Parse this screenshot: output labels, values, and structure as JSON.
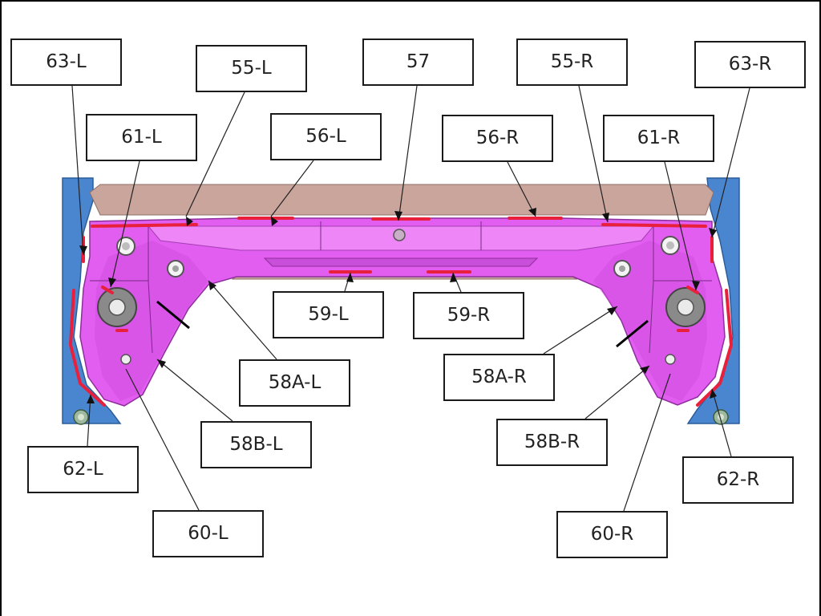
{
  "callouts": {
    "c63L": "63-L",
    "c55L": "55-L",
    "c57": "57",
    "c55R": "55-R",
    "c63R": "63-R",
    "c61L": "61-L",
    "c56L": "56-L",
    "c56R": "56-R",
    "c61R": "61-R",
    "c59L": "59-L",
    "c59R": "59-R",
    "c58AL": "58A-L",
    "c58AR": "58A-R",
    "c58BL": "58B-L",
    "c58BR": "58B-R",
    "c62L": "62-L",
    "c62R": "62-R",
    "c60L": "60-L",
    "c60R": "60-R"
  },
  "colors": {
    "crossmember": "#e25ef0",
    "crossmember_dark": "#b53fc4",
    "bracket": "#4a86cf",
    "weld_seam": "#e8203c",
    "backing": "#c9a59c",
    "leader": "#222222",
    "bushing": "#8a8a8a"
  }
}
